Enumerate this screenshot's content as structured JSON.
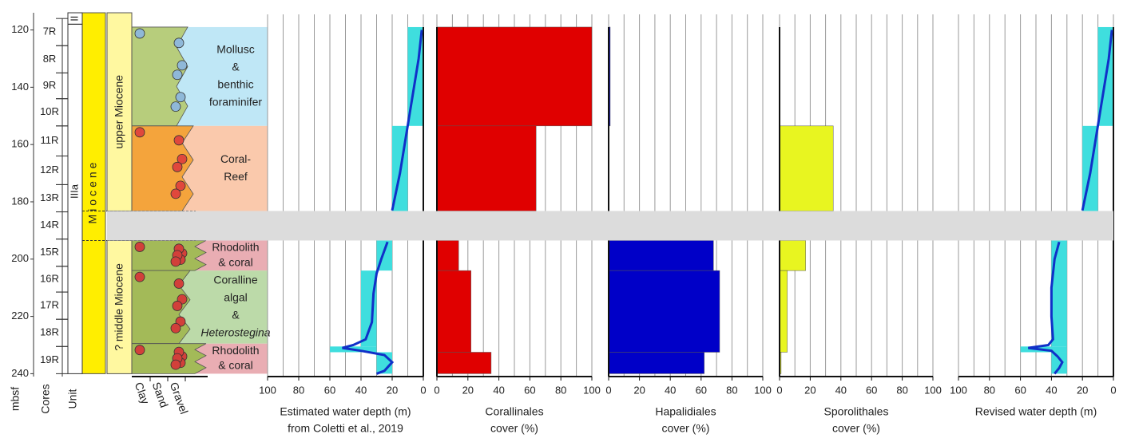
{
  "depth_axis": {
    "label": "mbsf",
    "ylim": [
      114,
      241
    ],
    "yticks": [
      120,
      140,
      160,
      180,
      200,
      220,
      240
    ]
  },
  "cores": {
    "label": "Cores",
    "items": [
      {
        "name": "7R",
        "top": 116,
        "bottom": 125.5
      },
      {
        "name": "8R",
        "top": 125.5,
        "bottom": 135
      },
      {
        "name": "9R",
        "top": 135,
        "bottom": 144
      },
      {
        "name": "10R",
        "top": 144,
        "bottom": 153.5
      },
      {
        "name": "11R",
        "top": 153.5,
        "bottom": 164
      },
      {
        "name": "12R",
        "top": 164,
        "bottom": 174
      },
      {
        "name": "13R",
        "top": 174,
        "bottom": 183.5
      },
      {
        "name": "14R",
        "top": 183.5,
        "bottom": 193
      },
      {
        "name": "15R",
        "top": 193,
        "bottom": 202.5
      },
      {
        "name": "16R",
        "top": 202.5,
        "bottom": 211.5
      },
      {
        "name": "17R",
        "top": 211.5,
        "bottom": 221
      },
      {
        "name": "18R",
        "top": 221,
        "bottom": 230.5
      },
      {
        "name": "19R",
        "top": 230.5,
        "bottom": 240
      }
    ]
  },
  "units": {
    "label": "Unit",
    "items": [
      {
        "name": "II",
        "top": 114,
        "bottom": 118
      },
      {
        "name": "IIIa",
        "top": 118,
        "bottom": 240
      }
    ]
  },
  "epoch": {
    "name": "Miocene",
    "top": 114,
    "bottom": 240
  },
  "subepochs": [
    {
      "name": "upper Miocene",
      "top": 114,
      "bottom": 183.2
    },
    {
      "name": "? middle Miocene",
      "top": 193.5,
      "bottom": 240
    }
  ],
  "lithology_scale": [
    "Clay",
    "Sand",
    "Gravel"
  ],
  "gap": {
    "top": 183.2,
    "bottom": 193.5
  },
  "facies": [
    {
      "lines": [
        "Mollusc",
        "&",
        "benthic",
        "foraminifer"
      ],
      "italic": [
        false,
        false,
        false,
        false
      ],
      "top": 119,
      "bottom": 153.5,
      "color": "#bfe7f6"
    },
    {
      "lines": [
        "Coral-",
        "Reef"
      ],
      "italic": [
        false,
        false
      ],
      "top": 153.5,
      "bottom": 183.2,
      "color": "#fac9ac"
    },
    {
      "lines": [
        "Rhodolith",
        "& coral"
      ],
      "italic": [
        false,
        false
      ],
      "top": 193.5,
      "bottom": 204,
      "color": "#e9adb3"
    },
    {
      "lines": [
        "Coralline",
        "algal",
        "&",
        "Heterostegina"
      ],
      "italic": [
        false,
        false,
        false,
        true
      ],
      "top": 204,
      "bottom": 229.5,
      "color": "#bcdaa9"
    },
    {
      "lines": [
        "Rhodolith",
        "& coral"
      ],
      "italic": [
        false,
        false
      ],
      "top": 229.5,
      "bottom": 240,
      "color": "#e9adb3"
    }
  ],
  "chart_data": [
    {
      "type": "range",
      "title": [
        "Estimated water depth (m)",
        "from Coletti et al., 2019"
      ],
      "xlim": [
        100,
        0
      ],
      "xticks": [
        100,
        80,
        60,
        40,
        20,
        0
      ],
      "grid": [
        90,
        70,
        50,
        30,
        10
      ],
      "color": "#3fdede",
      "bars": {
        "top": [
          119,
          153.5,
          193.5,
          204,
          230.5,
          232.5
        ],
        "bottom": [
          153.5,
          183.2,
          204,
          230.5,
          232.5,
          240
        ],
        "min": [
          0,
          10,
          20,
          30,
          30,
          20
        ],
        "max": [
          10,
          20,
          30,
          40,
          60,
          30
        ]
      },
      "curve": {
        "color": "#1030c8",
        "depth": [
          120,
          130,
          140,
          150,
          160,
          170,
          183,
          null,
          194,
          200,
          205,
          212,
          222,
          228,
          230,
          231,
          232,
          233.5,
          236,
          239,
          240
        ],
        "values": [
          1,
          3,
          6,
          9,
          12,
          15,
          20,
          null,
          23,
          27,
          30,
          32,
          33,
          37,
          45,
          52,
          40,
          25,
          20,
          25,
          30
        ]
      }
    },
    {
      "type": "bar",
      "title": [
        "Corallinales",
        "cover (%)"
      ],
      "xlim": [
        0,
        100
      ],
      "xticks": [
        0,
        20,
        40,
        60,
        80,
        100
      ],
      "grid": [
        10,
        30,
        50,
        70,
        90
      ],
      "color": "#e00000",
      "top": [
        119,
        153.5,
        193.5,
        204,
        232.5
      ],
      "bottom": [
        153.5,
        183.2,
        204,
        232.5,
        240
      ],
      "values": [
        100,
        64,
        14,
        22,
        35
      ]
    },
    {
      "type": "bar",
      "title": [
        "Hapalidiales",
        "cover (%)"
      ],
      "xlim": [
        0,
        100
      ],
      "xticks": [
        0,
        20,
        40,
        60,
        80,
        100
      ],
      "grid": [
        10,
        30,
        50,
        70,
        90
      ],
      "color": "#0000c8",
      "top": [
        119,
        193.5,
        204,
        232.5
      ],
      "bottom": [
        153.5,
        204,
        232.5,
        240
      ],
      "values": [
        1,
        68,
        72,
        62
      ]
    },
    {
      "type": "bar",
      "title": [
        "Sporolithales",
        "cover (%)"
      ],
      "xlim": [
        0,
        100
      ],
      "xticks": [
        0,
        20,
        40,
        60,
        80,
        100
      ],
      "grid": [
        10,
        30,
        50,
        70,
        90
      ],
      "color": "#e8f520",
      "top": [
        153.5,
        193.5,
        204,
        232.5
      ],
      "bottom": [
        183.2,
        204,
        232.5,
        240
      ],
      "values": [
        35,
        17,
        5,
        1
      ]
    },
    {
      "type": "range",
      "title": [
        "Revised water depth (m)"
      ],
      "xlim": [
        100,
        0
      ],
      "xticks": [
        100,
        80,
        60,
        40,
        20,
        0
      ],
      "grid": [
        90,
        70,
        50,
        30,
        10
      ],
      "color": "#3fdede",
      "bars": {
        "top": [
          119,
          153.5,
          193.5,
          230.5,
          232.5
        ],
        "bottom": [
          153.5,
          183.2,
          230.5,
          232.5,
          240
        ],
        "min": [
          0,
          10,
          30,
          30,
          30
        ],
        "max": [
          10,
          20,
          40,
          60,
          40
        ]
      },
      "curve": {
        "color": "#1030c8",
        "depth": [
          120,
          130,
          140,
          150,
          160,
          170,
          183,
          null,
          194,
          200,
          210,
          220,
          228,
          230,
          231,
          232,
          234,
          236,
          238,
          240
        ],
        "values": [
          1,
          3,
          6,
          9,
          12,
          15,
          20,
          null,
          35,
          38,
          40,
          40,
          39,
          42,
          55,
          40,
          36,
          33,
          35,
          38
        ]
      }
    }
  ]
}
